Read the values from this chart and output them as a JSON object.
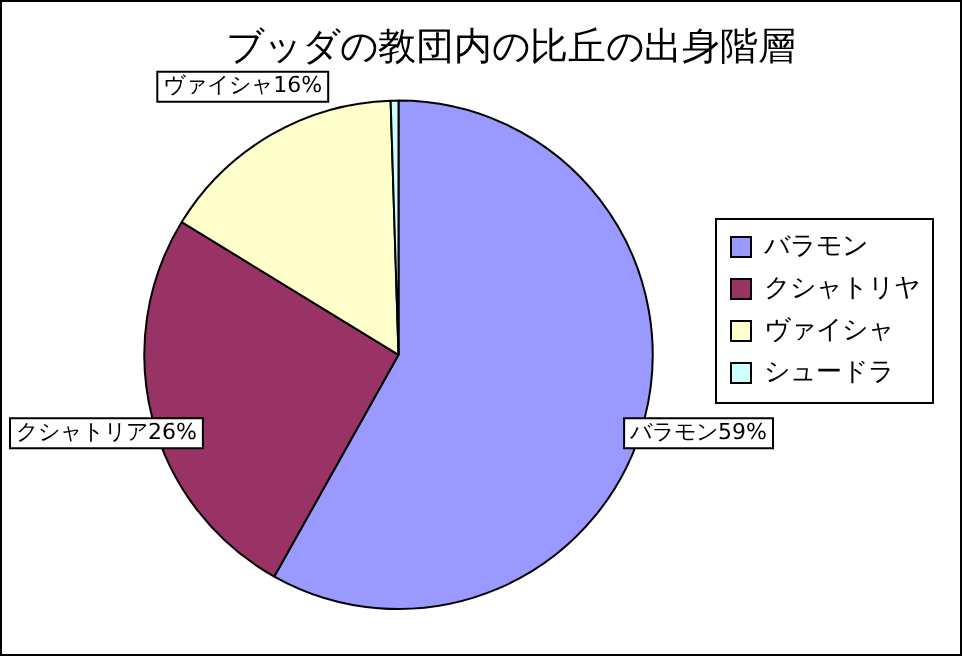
{
  "chart_data": {
    "type": "pie",
    "title": "ブッダの教団内の比丘の出身階層",
    "categories": [
      "バラモン",
      "クシャトリヤ",
      "ヴァイシャ",
      "シュードラ"
    ],
    "values": [
      59,
      26,
      16,
      0.5
    ],
    "colors": [
      "#9999ff",
      "#993366",
      "#ffffcc",
      "#ccffff"
    ],
    "value_labels": [
      "バラモン59%",
      "クシャトリア26%",
      "ヴァイシャ16%",
      null
    ],
    "legend": "right"
  }
}
